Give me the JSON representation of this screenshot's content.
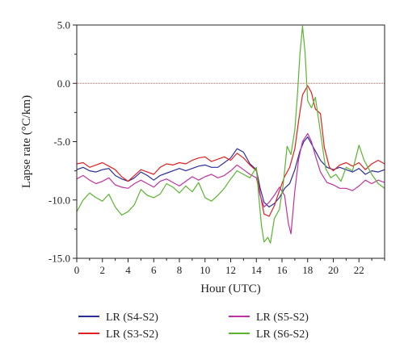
{
  "chart_data": {
    "type": "line",
    "xlabel": "Hour (UTC)",
    "ylabel": "Lapse rate (°C/km)",
    "xlim": [
      0,
      24
    ],
    "ylim": [
      -15,
      5
    ],
    "xticks": [
      0,
      2,
      4,
      6,
      8,
      10,
      12,
      14,
      16,
      18,
      20,
      22
    ],
    "xtick_labels": [
      "0",
      "2",
      "4",
      "6",
      "8",
      "10",
      "12",
      "14",
      "16",
      "18",
      "20",
      "22"
    ],
    "yticks": [
      -15,
      -10,
      -5,
      0,
      5
    ],
    "ytick_labels": [
      "-15.0",
      "-10.0",
      "-5.0",
      "0.0",
      "5.0"
    ],
    "reference_line": {
      "y": 0,
      "color": "#d9534f"
    },
    "legend_position": "bottom",
    "series": [
      {
        "name": "LR (S4-S2)",
        "color": "#2b2f9e",
        "points": [
          [
            0,
            -7.4
          ],
          [
            0.5,
            -7.2
          ],
          [
            1,
            -7.5
          ],
          [
            1.5,
            -7.6
          ],
          [
            2,
            -7.4
          ],
          [
            2.5,
            -7.3
          ],
          [
            3,
            -7.9
          ],
          [
            3.5,
            -8.2
          ],
          [
            4,
            -8.4
          ],
          [
            4.5,
            -8.1
          ],
          [
            5,
            -7.6
          ],
          [
            5.5,
            -7.9
          ],
          [
            6,
            -8.3
          ],
          [
            6.5,
            -7.9
          ],
          [
            7,
            -7.7
          ],
          [
            7.5,
            -7.5
          ],
          [
            8,
            -7.3
          ],
          [
            8.5,
            -7.5
          ],
          [
            9,
            -7.3
          ],
          [
            9.5,
            -7.1
          ],
          [
            10,
            -7.0
          ],
          [
            10.5,
            -7.2
          ],
          [
            11,
            -7.2
          ],
          [
            11.5,
            -6.8
          ],
          [
            12,
            -6.4
          ],
          [
            12.5,
            -5.6
          ],
          [
            13,
            -5.9
          ],
          [
            13.5,
            -6.9
          ],
          [
            14,
            -7.4
          ],
          [
            14.3,
            -9.0
          ],
          [
            14.6,
            -10.2
          ],
          [
            15,
            -10.6
          ],
          [
            15.4,
            -10.3
          ],
          [
            15.8,
            -9.8
          ],
          [
            16.2,
            -9.0
          ],
          [
            16.6,
            -8.6
          ],
          [
            17,
            -7.4
          ],
          [
            17.4,
            -5.8
          ],
          [
            17.7,
            -5.0
          ],
          [
            18,
            -4.6
          ],
          [
            18.3,
            -5.2
          ],
          [
            18.7,
            -6.0
          ],
          [
            19,
            -6.6
          ],
          [
            19.5,
            -7.2
          ],
          [
            20,
            -7.4
          ],
          [
            20.5,
            -7.2
          ],
          [
            21,
            -7.4
          ],
          [
            21.5,
            -7.6
          ],
          [
            22,
            -7.3
          ],
          [
            22.5,
            -7.8
          ],
          [
            23,
            -7.5
          ],
          [
            23.5,
            -7.6
          ],
          [
            24,
            -7.4
          ]
        ]
      },
      {
        "name": "LR (S3-S2)",
        "color": "#e02020",
        "points": [
          [
            0,
            -6.9
          ],
          [
            0.5,
            -6.8
          ],
          [
            1,
            -7.2
          ],
          [
            1.5,
            -7.0
          ],
          [
            2,
            -6.8
          ],
          [
            2.5,
            -7.1
          ],
          [
            3,
            -7.4
          ],
          [
            3.5,
            -8.0
          ],
          [
            4,
            -8.4
          ],
          [
            4.5,
            -7.9
          ],
          [
            5,
            -7.4
          ],
          [
            5.5,
            -7.6
          ],
          [
            6,
            -7.8
          ],
          [
            6.5,
            -7.2
          ],
          [
            7,
            -6.9
          ],
          [
            7.5,
            -7.0
          ],
          [
            8,
            -6.8
          ],
          [
            8.5,
            -6.9
          ],
          [
            9,
            -6.6
          ],
          [
            9.5,
            -6.4
          ],
          [
            10,
            -6.3
          ],
          [
            10.5,
            -6.7
          ],
          [
            11,
            -6.5
          ],
          [
            11.5,
            -6.3
          ],
          [
            12,
            -6.6
          ],
          [
            12.5,
            -6.0
          ],
          [
            13,
            -6.4
          ],
          [
            13.5,
            -7.0
          ],
          [
            14,
            -7.5
          ],
          [
            14.3,
            -9.5
          ],
          [
            14.6,
            -11.2
          ],
          [
            15,
            -11.4
          ],
          [
            15.4,
            -10.5
          ],
          [
            15.8,
            -9.2
          ],
          [
            16.2,
            -8.0
          ],
          [
            16.6,
            -7.2
          ],
          [
            17,
            -5.6
          ],
          [
            17.3,
            -3.2
          ],
          [
            17.6,
            -1.0
          ],
          [
            18,
            -0.2
          ],
          [
            18.3,
            -0.8
          ],
          [
            18.6,
            -2.2
          ],
          [
            19,
            -2.6
          ],
          [
            19.3,
            -5.5
          ],
          [
            19.7,
            -7.2
          ],
          [
            20,
            -7.5
          ],
          [
            20.5,
            -7.0
          ],
          [
            21,
            -6.8
          ],
          [
            21.5,
            -7.1
          ],
          [
            22,
            -6.8
          ],
          [
            22.5,
            -7.4
          ],
          [
            23,
            -6.9
          ],
          [
            23.5,
            -6.6
          ],
          [
            24,
            -6.9
          ]
        ]
      },
      {
        "name": "LR (S5-S2)",
        "color": "#c0339f",
        "points": [
          [
            0,
            -8.2
          ],
          [
            0.5,
            -7.9
          ],
          [
            1,
            -8.3
          ],
          [
            1.5,
            -8.6
          ],
          [
            2,
            -8.4
          ],
          [
            2.5,
            -8.1
          ],
          [
            3,
            -8.7
          ],
          [
            3.5,
            -8.9
          ],
          [
            4,
            -9.0
          ],
          [
            4.5,
            -8.6
          ],
          [
            5,
            -8.3
          ],
          [
            5.5,
            -8.6
          ],
          [
            6,
            -8.9
          ],
          [
            6.5,
            -8.4
          ],
          [
            7,
            -8.2
          ],
          [
            7.5,
            -8.5
          ],
          [
            8,
            -8.8
          ],
          [
            8.5,
            -8.4
          ],
          [
            9,
            -8.0
          ],
          [
            9.5,
            -8.3
          ],
          [
            10,
            -8.0
          ],
          [
            10.5,
            -7.8
          ],
          [
            11,
            -8.1
          ],
          [
            11.5,
            -7.9
          ],
          [
            12,
            -7.5
          ],
          [
            12.5,
            -7.0
          ],
          [
            13,
            -7.4
          ],
          [
            13.5,
            -7.8
          ],
          [
            14,
            -8.1
          ],
          [
            14.3,
            -9.6
          ],
          [
            14.6,
            -10.6
          ],
          [
            15,
            -10.2
          ],
          [
            15.4,
            -9.6
          ],
          [
            15.8,
            -8.9
          ],
          [
            16.2,
            -9.6
          ],
          [
            16.5,
            -12.0
          ],
          [
            16.7,
            -12.9
          ],
          [
            17,
            -9.2
          ],
          [
            17.3,
            -6.5
          ],
          [
            17.6,
            -5.0
          ],
          [
            18,
            -4.3
          ],
          [
            18.3,
            -5.0
          ],
          [
            18.6,
            -6.2
          ],
          [
            19,
            -7.6
          ],
          [
            19.5,
            -8.5
          ],
          [
            20,
            -8.7
          ],
          [
            20.5,
            -9.0
          ],
          [
            21,
            -9.0
          ],
          [
            21.5,
            -9.2
          ],
          [
            22,
            -8.8
          ],
          [
            22.5,
            -8.3
          ],
          [
            23,
            -8.6
          ],
          [
            23.5,
            -8.3
          ],
          [
            24,
            -8.5
          ]
        ]
      },
      {
        "name": "LR (S6-S2)",
        "color": "#5bb430",
        "points": [
          [
            0,
            -11.0
          ],
          [
            0.5,
            -10.0
          ],
          [
            1,
            -9.4
          ],
          [
            1.5,
            -9.8
          ],
          [
            2,
            -10.1
          ],
          [
            2.5,
            -9.5
          ],
          [
            3,
            -10.6
          ],
          [
            3.5,
            -11.3
          ],
          [
            4,
            -11.0
          ],
          [
            4.5,
            -10.4
          ],
          [
            5,
            -9.1
          ],
          [
            5.5,
            -9.6
          ],
          [
            6,
            -9.8
          ],
          [
            6.5,
            -9.5
          ],
          [
            7,
            -8.6
          ],
          [
            7.5,
            -8.9
          ],
          [
            8,
            -9.4
          ],
          [
            8.5,
            -8.8
          ],
          [
            9,
            -9.3
          ],
          [
            9.5,
            -8.5
          ],
          [
            10,
            -9.8
          ],
          [
            10.5,
            -10.1
          ],
          [
            11,
            -9.6
          ],
          [
            11.5,
            -9.0
          ],
          [
            12,
            -8.2
          ],
          [
            12.5,
            -7.5
          ],
          [
            13,
            -7.8
          ],
          [
            13.5,
            -8.1
          ],
          [
            14,
            -7.2
          ],
          [
            14.2,
            -9.8
          ],
          [
            14.4,
            -12.2
          ],
          [
            14.6,
            -13.6
          ],
          [
            14.9,
            -13.2
          ],
          [
            15.1,
            -13.7
          ],
          [
            15.4,
            -11.6
          ],
          [
            15.8,
            -10.8
          ],
          [
            16.1,
            -8.6
          ],
          [
            16.4,
            -5.4
          ],
          [
            16.7,
            -6.1
          ],
          [
            17,
            -4.0
          ],
          [
            17.2,
            -1.0
          ],
          [
            17.4,
            2.5
          ],
          [
            17.6,
            4.9
          ],
          [
            17.8,
            2.6
          ],
          [
            18,
            -1.5
          ],
          [
            18.3,
            -2.1
          ],
          [
            18.6,
            -1.2
          ],
          [
            19,
            -4.2
          ],
          [
            19.4,
            -7.3
          ],
          [
            19.8,
            -8.1
          ],
          [
            20.2,
            -7.8
          ],
          [
            20.6,
            -8.4
          ],
          [
            21,
            -7.2
          ],
          [
            21.5,
            -7.5
          ],
          [
            22,
            -5.3
          ],
          [
            22.4,
            -6.6
          ],
          [
            23,
            -7.8
          ],
          [
            23.5,
            -8.6
          ],
          [
            24,
            -9.0
          ]
        ]
      }
    ]
  }
}
